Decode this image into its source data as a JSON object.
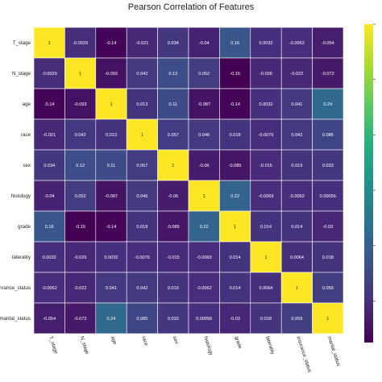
{
  "chart_data": {
    "type": "heatmap",
    "title": "Pearson Correlation of Features",
    "labels": [
      "T_stage",
      "N_stage",
      "age",
      "race",
      "sex",
      "histology",
      "grade",
      "laterality",
      "insurance_status",
      "marital_status"
    ],
    "y_labels_visible": [
      "T_stage",
      "N_stage",
      "age",
      "race",
      "sex",
      "histology",
      "grade",
      "laterality",
      "inrance_status",
      "marital_status"
    ],
    "x_labels_visible": [
      "T_stage",
      "N_stage",
      "age",
      "race",
      "sex",
      "histology",
      "grade",
      "laterality",
      "insurance_status",
      "marital_status"
    ],
    "matrix": [
      [
        1,
        -0.0029,
        -0.14,
        -0.021,
        0.034,
        -0.04,
        0.16,
        0.0032,
        -0.0062,
        -0.054
      ],
      [
        -0.0029,
        1,
        -0.093,
        0.042,
        0.12,
        0.052,
        -0.15,
        -0.026,
        -0.022,
        -0.072
      ],
      [
        -0.14,
        -0.093,
        1,
        0.013,
        0.11,
        -0.087,
        -0.14,
        0.0032,
        0.041,
        0.24
      ],
      [
        -0.021,
        0.042,
        0.013,
        1,
        0.057,
        0.046,
        0.018,
        -0.0076,
        0.042,
        0.085
      ],
      [
        0.034,
        0.12,
        0.11,
        0.057,
        1,
        -0.06,
        -0.085,
        -0.015,
        0.019,
        0.033
      ],
      [
        -0.04,
        0.052,
        -0.087,
        0.046,
        -0.06,
        1,
        0.22,
        -0.0069,
        -0.0062,
        0.00056
      ],
      [
        0.16,
        -0.15,
        -0.14,
        0.018,
        -0.085,
        0.22,
        1,
        0.014,
        0.014,
        -0.03
      ],
      [
        0.0032,
        -0.026,
        0.0032,
        -0.0076,
        -0.015,
        -0.0069,
        0.014,
        1,
        0.0064,
        0.018
      ],
      [
        -0.0062,
        -0.022,
        0.041,
        0.042,
        0.019,
        -0.0062,
        0.014,
        0.0064,
        1,
        0.059
      ],
      [
        -0.054,
        -0.072,
        0.24,
        0.085,
        0.033,
        0.00056,
        -0.03,
        0.018,
        0.059,
        1
      ]
    ],
    "value_labels": [
      [
        "1",
        "-0.0029",
        "-0.14",
        "-0.021",
        "0.034",
        "-0.04",
        "0.16",
        "0.0032",
        "-0.0062",
        "-0.054"
      ],
      [
        "-0.0029",
        "1",
        "-0.093",
        "0.042",
        "0.12",
        "0.052",
        "-0.15",
        "-0.026",
        "-0.022",
        "-0.072"
      ],
      [
        "-0.14",
        "-0.093",
        "1",
        "0.013",
        "0.11",
        "-0.087",
        "-0.14",
        "0.0032",
        "0.041",
        "0.24"
      ],
      [
        "-0.021",
        "0.042",
        "0.013",
        "1",
        "0.057",
        "0.046",
        "0.018",
        "-0.0076",
        "0.042",
        "0.085"
      ],
      [
        "0.034",
        "0.12",
        "0.11",
        "0.057",
        "1",
        "-0.06",
        "-0.085",
        "-0.015",
        "0.019",
        "0.033"
      ],
      [
        "-0.04",
        "0.052",
        "-0.087",
        "0.046",
        "-0.06",
        "1",
        "0.22",
        "-0.0069",
        "-0.0062",
        "0.00056"
      ],
      [
        "0.16",
        "-0.15",
        "-0.14",
        "0.018",
        "-0.085",
        "0.22",
        "1",
        "0.014",
        "0.014",
        "-0.03"
      ],
      [
        "0.0032",
        "-0.026",
        "0.0032",
        "-0.0076",
        "-0.015",
        "-0.0069",
        "0.014",
        "1",
        "0.0064",
        "0.018"
      ],
      [
        "-0.0062",
        "-0.022",
        "0.041",
        "0.042",
        "0.019",
        "-0.0062",
        "0.014",
        "0.0064",
        "1",
        "0.059"
      ],
      [
        "-0.054",
        "-0.072",
        "0.24",
        "0.085",
        "0.033",
        "0.00056",
        "-0.03",
        "0.018",
        "0.059",
        "1"
      ]
    ],
    "colormap": "viridis",
    "value_range": [
      -0.15,
      1
    ],
    "grid": true,
    "colorbar": true
  }
}
